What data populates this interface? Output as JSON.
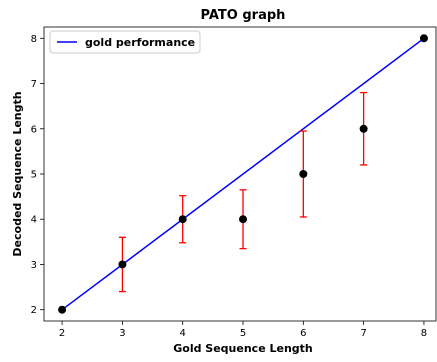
{
  "chart_data": {
    "type": "line",
    "title": "PATO graph",
    "xlabel": "Gold Sequence Length",
    "ylabel": "Decoded Sequence Length",
    "xlim": [
      1.7,
      8.2
    ],
    "ylim": [
      1.75,
      8.25
    ],
    "xticks": [
      2,
      3,
      4,
      5,
      6,
      7,
      8
    ],
    "yticks": [
      2,
      3,
      4,
      5,
      6,
      7,
      8
    ],
    "grid": false,
    "legend_position": "top-left",
    "series": [
      {
        "name": "gold performance",
        "kind": "line",
        "color": "#0000ff",
        "x": [
          2,
          8
        ],
        "y": [
          2,
          8
        ]
      },
      {
        "kind": "errorbar-scatter",
        "marker_color": "#000000",
        "errorbar_color": "#ff0000",
        "x": [
          2,
          3,
          4,
          5,
          6,
          7,
          8
        ],
        "y": [
          2,
          3,
          4,
          4,
          5,
          6,
          8
        ],
        "yerr_low": [
          2,
          2.4,
          3.48,
          3.35,
          4.05,
          5.2,
          8
        ],
        "yerr_high": [
          2,
          3.6,
          4.52,
          4.65,
          5.95,
          6.8,
          8
        ]
      }
    ]
  }
}
